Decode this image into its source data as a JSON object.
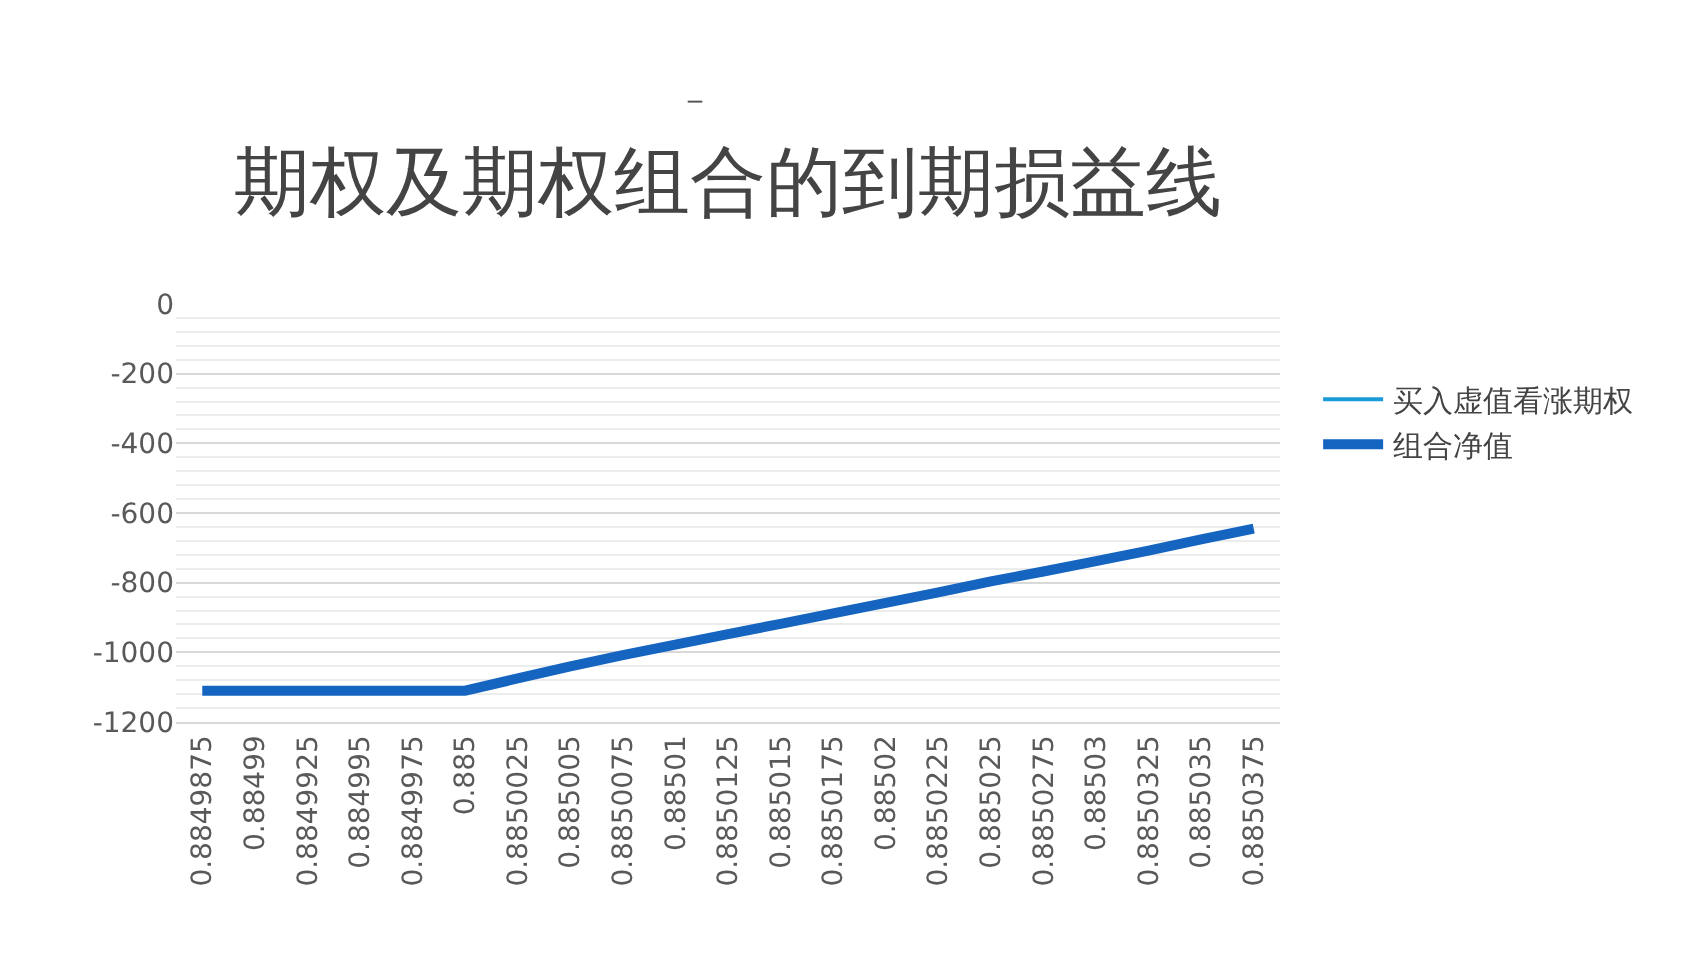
{
  "chart_data": {
    "type": "line",
    "title": "期权及期权组合的到期损益线",
    "annotations": [
      "_"
    ],
    "categories": [
      "0.8849875",
      "0.88499",
      "0.8849925",
      "0.884995",
      "0.8849975",
      "0.885",
      "0.8850025",
      "0.885005",
      "0.8850075",
      "0.88501",
      "0.8850125",
      "0.885015",
      "0.8850175",
      "0.88502",
      "0.8850225",
      "0.885025",
      "0.8850275",
      "0.88503",
      "0.8850325",
      "0.885035",
      "0.8850375"
    ],
    "series": [
      {
        "name": "买入虚值看涨期权",
        "color": "#1a9ad6",
        "values": [
          null,
          null,
          null,
          null,
          null,
          null,
          null,
          null,
          null,
          null,
          null,
          null,
          null,
          null,
          null,
          null,
          null,
          null,
          null,
          null,
          null
        ]
      },
      {
        "name": "组合净值",
        "color": "#1565c0",
        "values": [
          -1110,
          -1110,
          -1110,
          -1110,
          -1110,
          -1110,
          -1075,
          -1040,
          -1008,
          -978,
          -948,
          -918,
          -888,
          -858,
          -828,
          -796,
          -768,
          -738,
          -708,
          -676,
          -645
        ]
      }
    ],
    "ylim": [
      -1200,
      0
    ],
    "yticks": [
      -1200,
      -1000,
      -800,
      -600,
      -400,
      -200,
      0
    ],
    "grid": "y",
    "legend": "right",
    "marker": "none",
    "line_style": "solid"
  }
}
